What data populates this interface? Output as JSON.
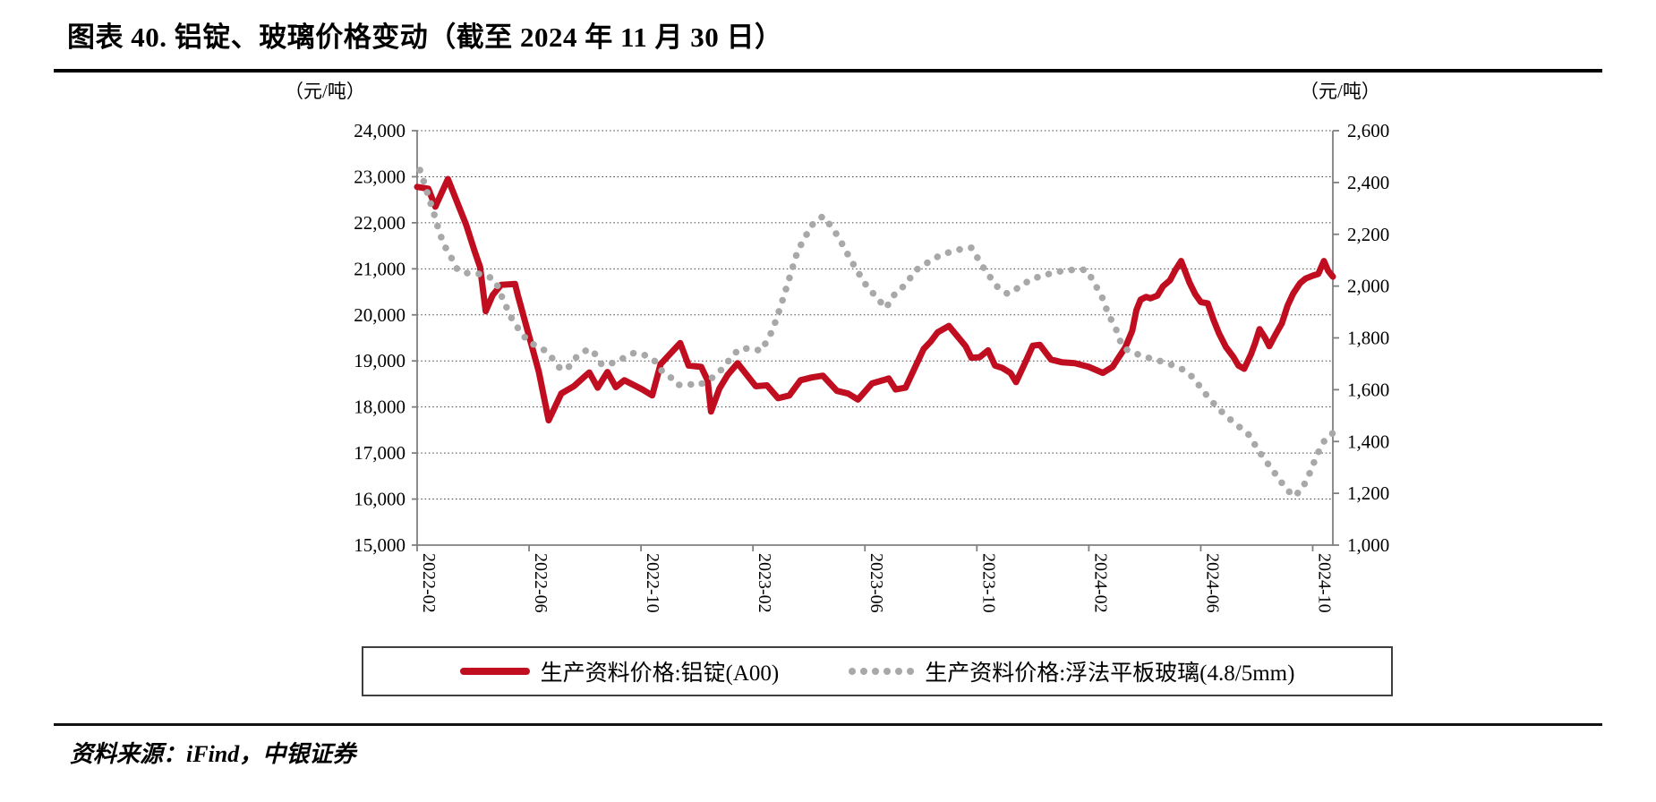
{
  "title": "图表 40. 铝锭、玻璃价格变动（截至 2024 年 11 月 30 日）",
  "source_note": "资料来源：iFind，中银证券",
  "colors": {
    "aluminum_line": "#C00D1F",
    "glass_line": "#A8A8A8",
    "axis_line": "#7F7F7F",
    "gridline": "#404040",
    "text": "#000000"
  },
  "chart_data": {
    "type": "line",
    "title": "铝锭、玻璃价格变动",
    "left_axis": {
      "unit": "（元/吨）",
      "min": 15000,
      "max": 24000,
      "step": 1000,
      "tick_labels": [
        "24,000",
        "23,000",
        "22,000",
        "21,000",
        "20,000",
        "19,000",
        "18,000",
        "17,000",
        "16,000",
        "15,000"
      ]
    },
    "right_axis": {
      "unit": "（元/吨）",
      "min": 1000,
      "max": 2600,
      "step": 200,
      "tick_labels": [
        "2,600",
        "2,400",
        "2,200",
        "2,000",
        "1,800",
        "1,600",
        "1,400",
        "1,200",
        "1,000"
      ]
    },
    "x_axis": {
      "tick_labels": [
        "2022-02",
        "2022-06",
        "2022-10",
        "2023-02",
        "2023-06",
        "2023-10",
        "2024-02",
        "2024-06",
        "2024-10"
      ],
      "tick_positions": [
        0,
        4,
        8,
        12,
        16,
        20,
        24,
        28,
        32
      ],
      "range": [
        0,
        32.72
      ]
    },
    "grid": "horizontal-dotted",
    "legend_position": "bottom",
    "series": [
      {
        "name": "生产资料价格:铝锭(A00)",
        "axis": "left",
        "style": "solid",
        "color": "#C00D1F",
        "points": [
          [
            0,
            22780
          ],
          [
            0.4,
            22740
          ],
          [
            0.65,
            22350
          ],
          [
            1.1,
            22950
          ],
          [
            1.4,
            22490
          ],
          [
            1.75,
            21960
          ],
          [
            2.05,
            21390
          ],
          [
            2.25,
            21040
          ],
          [
            2.45,
            20080
          ],
          [
            2.7,
            20430
          ],
          [
            3.0,
            20650
          ],
          [
            3.5,
            20670
          ],
          [
            3.6,
            20420
          ],
          [
            4.05,
            19430
          ],
          [
            4.35,
            18760
          ],
          [
            4.7,
            17710
          ],
          [
            5.15,
            18290
          ],
          [
            5.6,
            18450
          ],
          [
            6.0,
            18670
          ],
          [
            6.15,
            18750
          ],
          [
            6.45,
            18420
          ],
          [
            6.8,
            18760
          ],
          [
            7.1,
            18430
          ],
          [
            7.4,
            18580
          ],
          [
            7.7,
            18490
          ],
          [
            8.05,
            18380
          ],
          [
            8.4,
            18250
          ],
          [
            8.7,
            18930
          ],
          [
            8.85,
            19030
          ],
          [
            9.4,
            19390
          ],
          [
            9.7,
            18900
          ],
          [
            10.15,
            18870
          ],
          [
            10.38,
            18580
          ],
          [
            10.5,
            17900
          ],
          [
            10.8,
            18400
          ],
          [
            11.1,
            18700
          ],
          [
            11.45,
            18950
          ],
          [
            12.1,
            18450
          ],
          [
            12.5,
            18470
          ],
          [
            12.9,
            18190
          ],
          [
            13.3,
            18250
          ],
          [
            13.7,
            18580
          ],
          [
            14.1,
            18640
          ],
          [
            14.5,
            18680
          ],
          [
            15.0,
            18350
          ],
          [
            15.4,
            18290
          ],
          [
            15.75,
            18160
          ],
          [
            16.25,
            18510
          ],
          [
            16.65,
            18580
          ],
          [
            16.85,
            18620
          ],
          [
            17.1,
            18380
          ],
          [
            17.45,
            18420
          ],
          [
            17.75,
            18810
          ],
          [
            18.1,
            19260
          ],
          [
            18.35,
            19420
          ],
          [
            18.6,
            19620
          ],
          [
            19.0,
            19760
          ],
          [
            19.6,
            19320
          ],
          [
            19.8,
            19070
          ],
          [
            20.1,
            19080
          ],
          [
            20.4,
            19230
          ],
          [
            20.65,
            18900
          ],
          [
            20.9,
            18850
          ],
          [
            21.2,
            18740
          ],
          [
            21.4,
            18540
          ],
          [
            21.7,
            18930
          ],
          [
            22.0,
            19330
          ],
          [
            22.25,
            19350
          ],
          [
            22.65,
            19030
          ],
          [
            23.05,
            18970
          ],
          [
            23.5,
            18950
          ],
          [
            24.0,
            18870
          ],
          [
            24.5,
            18740
          ],
          [
            24.85,
            18870
          ],
          [
            25.05,
            19060
          ],
          [
            25.3,
            19290
          ],
          [
            25.55,
            19650
          ],
          [
            25.7,
            20100
          ],
          [
            25.85,
            20330
          ],
          [
            26.05,
            20390
          ],
          [
            26.2,
            20360
          ],
          [
            26.45,
            20420
          ],
          [
            26.65,
            20620
          ],
          [
            26.9,
            20750
          ],
          [
            27.1,
            20980
          ],
          [
            27.3,
            21170
          ],
          [
            27.6,
            20700
          ],
          [
            27.8,
            20450
          ],
          [
            28.0,
            20280
          ],
          [
            28.25,
            20250
          ],
          [
            28.45,
            19900
          ],
          [
            28.65,
            19600
          ],
          [
            28.9,
            19300
          ],
          [
            29.15,
            19100
          ],
          [
            29.35,
            18900
          ],
          [
            29.55,
            18830
          ],
          [
            29.8,
            19150
          ],
          [
            29.95,
            19400
          ],
          [
            30.1,
            19690
          ],
          [
            30.3,
            19500
          ],
          [
            30.45,
            19320
          ],
          [
            30.65,
            19550
          ],
          [
            30.9,
            19820
          ],
          [
            31.1,
            20200
          ],
          [
            31.3,
            20460
          ],
          [
            31.55,
            20690
          ],
          [
            31.75,
            20790
          ],
          [
            32.0,
            20850
          ],
          [
            32.2,
            20890
          ],
          [
            32.4,
            21170
          ],
          [
            32.55,
            20960
          ],
          [
            32.72,
            20830
          ]
        ]
      },
      {
        "name": "生产资料价格:浮法平板玻璃(4.8/5mm)",
        "axis": "right",
        "style": "dotted",
        "color": "#A8A8A8",
        "points": [
          [
            0.1,
            2448
          ],
          [
            0.25,
            2400
          ],
          [
            0.45,
            2330
          ],
          [
            0.6,
            2280
          ],
          [
            0.75,
            2225
          ],
          [
            0.95,
            2160
          ],
          [
            1.15,
            2125
          ],
          [
            1.45,
            2062
          ],
          [
            1.8,
            2050
          ],
          [
            2.15,
            2048
          ],
          [
            2.5,
            2040
          ],
          [
            2.8,
            2020
          ],
          [
            3.1,
            1940
          ],
          [
            3.4,
            1870
          ],
          [
            3.7,
            1822
          ],
          [
            4.0,
            1782
          ],
          [
            4.35,
            1766
          ],
          [
            4.65,
            1745
          ],
          [
            4.9,
            1712
          ],
          [
            5.15,
            1676
          ],
          [
            5.45,
            1690
          ],
          [
            5.7,
            1727
          ],
          [
            6.0,
            1750
          ],
          [
            6.25,
            1755
          ],
          [
            6.6,
            1696
          ],
          [
            6.9,
            1700
          ],
          [
            7.2,
            1712
          ],
          [
            7.5,
            1730
          ],
          [
            7.75,
            1742
          ],
          [
            8.1,
            1735
          ],
          [
            8.45,
            1716
          ],
          [
            8.75,
            1672
          ],
          [
            9.0,
            1655
          ],
          [
            9.3,
            1618
          ],
          [
            9.7,
            1622
          ],
          [
            10.0,
            1615
          ],
          [
            10.3,
            1630
          ],
          [
            10.6,
            1650
          ],
          [
            10.9,
            1680
          ],
          [
            11.2,
            1722
          ],
          [
            11.5,
            1757
          ],
          [
            11.9,
            1760
          ],
          [
            12.3,
            1750
          ],
          [
            12.7,
            1830
          ],
          [
            13.0,
            1925
          ],
          [
            13.3,
            2030
          ],
          [
            13.6,
            2137
          ],
          [
            14.1,
            2235
          ],
          [
            14.5,
            2270
          ],
          [
            14.8,
            2230
          ],
          [
            15.05,
            2190
          ],
          [
            15.5,
            2100
          ],
          [
            16.0,
            2010
          ],
          [
            16.4,
            1958
          ],
          [
            16.75,
            1915
          ],
          [
            17.1,
            1975
          ],
          [
            17.45,
            2005
          ],
          [
            17.8,
            2060
          ],
          [
            18.15,
            2085
          ],
          [
            18.7,
            2120
          ],
          [
            19.3,
            2140
          ],
          [
            19.8,
            2148
          ],
          [
            20.3,
            2060
          ],
          [
            20.75,
            1995
          ],
          [
            21.1,
            1970
          ],
          [
            21.5,
            1995
          ],
          [
            21.85,
            2020
          ],
          [
            22.3,
            2040
          ],
          [
            22.7,
            2050
          ],
          [
            23.1,
            2060
          ],
          [
            23.7,
            2065
          ],
          [
            23.95,
            2060
          ],
          [
            24.2,
            2010
          ],
          [
            24.45,
            1965
          ],
          [
            24.7,
            1890
          ],
          [
            24.95,
            1840
          ],
          [
            25.2,
            1765
          ],
          [
            25.5,
            1745
          ],
          [
            25.8,
            1735
          ],
          [
            26.3,
            1717
          ],
          [
            26.75,
            1705
          ],
          [
            27.1,
            1690
          ],
          [
            27.4,
            1676
          ],
          [
            27.75,
            1645
          ],
          [
            28.05,
            1600
          ],
          [
            28.35,
            1560
          ],
          [
            28.65,
            1525
          ],
          [
            28.95,
            1495
          ],
          [
            29.2,
            1472
          ],
          [
            29.45,
            1450
          ],
          [
            29.7,
            1428
          ],
          [
            29.95,
            1385
          ],
          [
            30.25,
            1335
          ],
          [
            30.55,
            1293
          ],
          [
            30.8,
            1253
          ],
          [
            31.05,
            1220
          ],
          [
            31.3,
            1188
          ],
          [
            31.6,
            1212
          ],
          [
            31.9,
            1280
          ],
          [
            32.15,
            1348
          ],
          [
            32.4,
            1400
          ],
          [
            32.55,
            1422
          ],
          [
            32.72,
            1432
          ]
        ]
      }
    ]
  },
  "legend": {
    "item1": "生产资料价格:铝锭(A00)",
    "item2": "生产资料价格:浮法平板玻璃(4.8/5mm)"
  }
}
